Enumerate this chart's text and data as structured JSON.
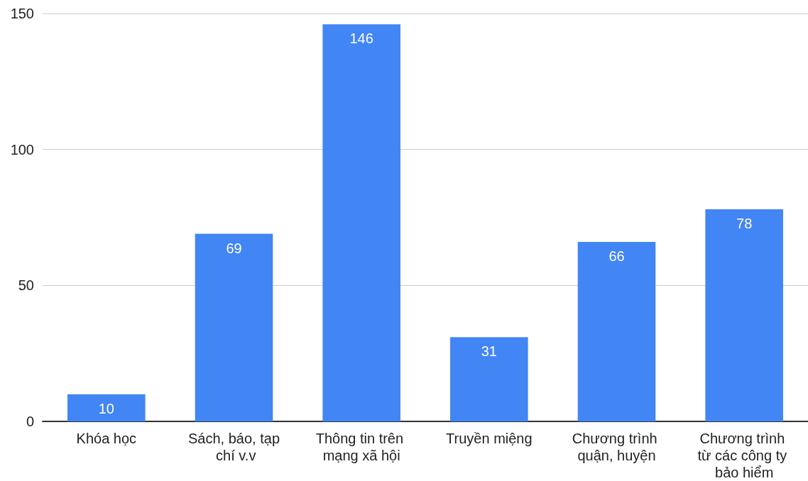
{
  "chart_data": {
    "type": "bar",
    "categories": [
      "Khóa học",
      "Sách, báo, tạp chí v.v",
      "Thông tin trên mạng xã hội",
      "Truyền miệng",
      "Chương trình quận, huyện",
      "Chương trình từ các công ty bảo hiểm"
    ],
    "values": [
      10,
      69,
      146,
      31,
      66,
      78
    ],
    "color": "#4285f4",
    "ylim": [
      0,
      150
    ],
    "yticks": [
      0,
      50,
      100,
      150
    ],
    "grid": "y",
    "data_labels": true
  }
}
